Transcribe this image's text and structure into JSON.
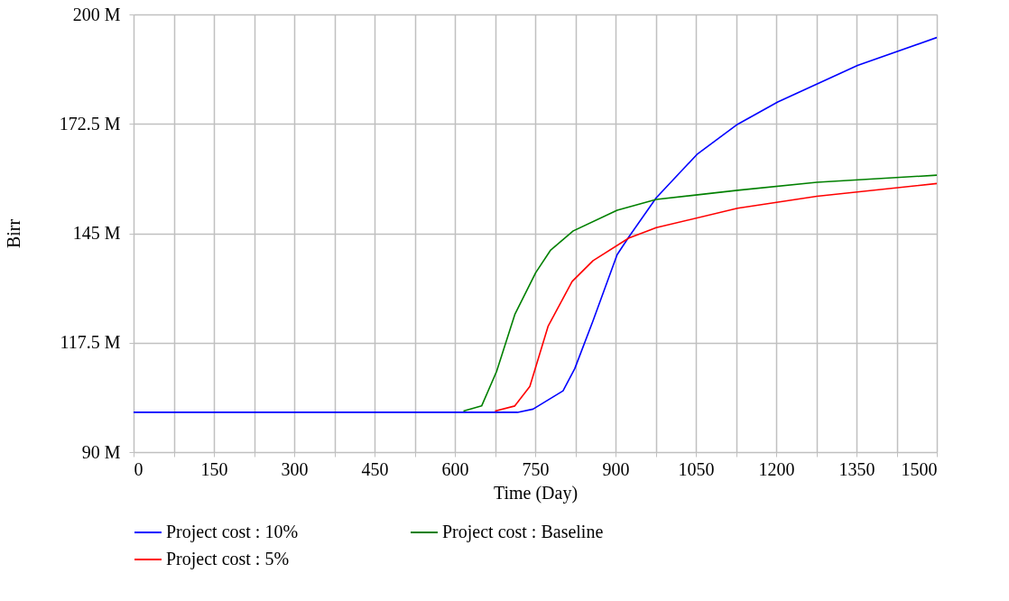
{
  "chart_data": {
    "type": "line",
    "xlabel": "Time (Day)",
    "ylabel": "Birr",
    "xlim": [
      0,
      1500
    ],
    "ylim": [
      90,
      200
    ],
    "xticks": [
      0,
      {
        "value": 75,
        "label": null
      },
      150,
      {
        "value": 225,
        "label": null
      },
      300,
      {
        "value": 375,
        "label": null
      },
      450,
      {
        "value": 525,
        "label": null
      },
      600,
      {
        "value": 675,
        "label": null
      },
      750,
      {
        "value": 825,
        "label": null
      },
      900,
      {
        "value": 975,
        "label": null
      },
      1050,
      {
        "value": 1125,
        "label": null
      },
      1200,
      {
        "value": 1275,
        "label": null
      },
      1350,
      {
        "value": 1425,
        "label": null
      },
      1500
    ],
    "yticks": [
      {
        "value": 90,
        "label": "90 M"
      },
      {
        "value": 117.5,
        "label": "117.5 M"
      },
      {
        "value": 145,
        "label": "145 M"
      },
      {
        "value": 172.5,
        "label": "172.5 M"
      },
      {
        "value": 200,
        "label": "200 M"
      }
    ],
    "grid": true,
    "legend": "bottom",
    "marker": "none",
    "line_style": "solid",
    "series": [
      {
        "name": "Project cost : 10%",
        "color": "#0000ff",
        "x": [
          0,
          300,
          600,
          717,
          746,
          802,
          824,
          858,
          903,
          925,
          976,
          1052,
          1128,
          1203,
          1352,
          1500
        ],
        "values": [
          100,
          100,
          100,
          100,
          100.8,
          105.4,
          111,
          123,
          139.6,
          144.1,
          153.9,
          164.8,
          172.4,
          178,
          187.2,
          194.2
        ]
      },
      {
        "name": "Project cost : Baseline",
        "color": "#008000",
        "x": [
          616,
          650,
          678,
          712,
          751,
          779,
          821,
          903,
          976,
          1128,
          1276,
          1500
        ],
        "values": [
          100.3,
          101.6,
          110.3,
          124.6,
          135.1,
          140.8,
          145.6,
          150.8,
          153.5,
          155.8,
          157.8,
          159.6
        ]
      },
      {
        "name": "Project cost : 5%",
        "color": "#ff0000",
        "x": [
          675,
          712,
          740,
          774,
          819,
          858,
          925,
          976,
          1128,
          1276,
          1500
        ],
        "values": [
          100.3,
          101.6,
          106.5,
          121.6,
          132.9,
          138.1,
          143.8,
          146.4,
          151.3,
          154.3,
          157.5
        ]
      }
    ]
  }
}
